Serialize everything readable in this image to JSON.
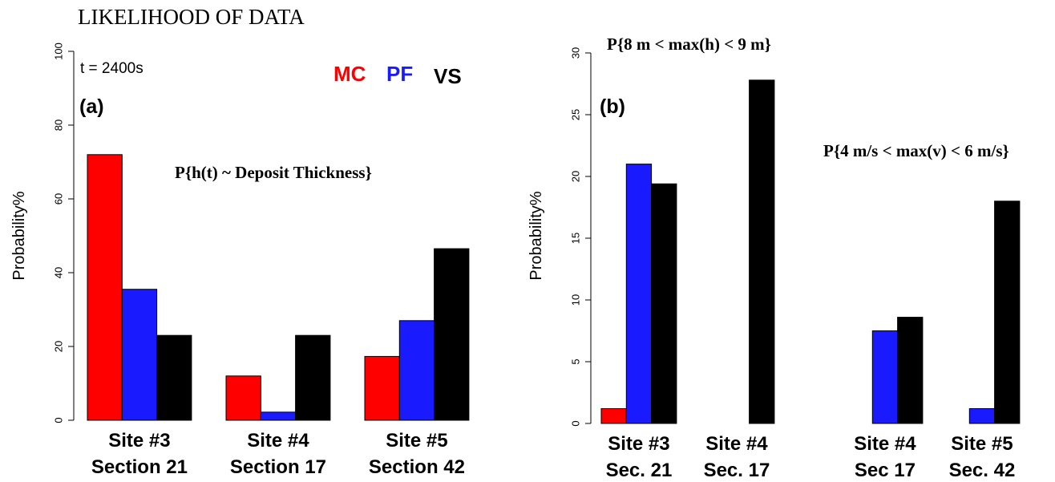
{
  "figure_title": "LIKELIHOOD OF DATA",
  "colors": {
    "MC": "#ff0000",
    "PF": "#1a1aff",
    "VS": "#000000"
  },
  "chart_data": [
    {
      "type": "bar",
      "panel_label": "(a)",
      "time_label": "t = 2400s",
      "annotation": "P{h(t) ~ Deposit Thickness}",
      "legend": [
        "MC",
        "PF",
        "VS"
      ],
      "ylabel": "Probability%",
      "ylim": [
        0,
        100
      ],
      "yticks": [
        0,
        20,
        40,
        60,
        80,
        100
      ],
      "categories": [
        [
          "Site #3",
          "Section 21"
        ],
        [
          "Site #4",
          "Section 17"
        ],
        [
          "Site #5",
          "Section 42"
        ]
      ],
      "series": [
        {
          "name": "MC",
          "values": [
            72,
            12,
            17.3
          ]
        },
        {
          "name": "PF",
          "values": [
            35.5,
            2.2,
            27
          ]
        },
        {
          "name": "VS",
          "values": [
            23,
            23,
            46.5
          ]
        }
      ]
    },
    {
      "type": "bar",
      "panel_label": "(b)",
      "ylabel": "Probability%",
      "ylim": [
        0,
        30
      ],
      "yticks": [
        0,
        5,
        10,
        15,
        20,
        25,
        30
      ],
      "groups": [
        {
          "annotation": "P{8 m < max(h) < 9 m}",
          "categories": [
            [
              "Site #3",
              "Sec. 21"
            ],
            [
              "Site #4",
              "Sec. 17"
            ]
          ],
          "series": [
            {
              "name": "MC",
              "values": [
                1.2,
                0
              ]
            },
            {
              "name": "PF",
              "values": [
                21,
                0
              ]
            },
            {
              "name": "VS",
              "values": [
                19.4,
                27.8
              ]
            }
          ]
        },
        {
          "annotation": "P{4 m/s < max(v) < 6 m/s}",
          "categories": [
            [
              "Site #4",
              "Sec 17"
            ],
            [
              "Site #5",
              "Sec. 42"
            ]
          ],
          "series": [
            {
              "name": "MC",
              "values": [
                0,
                0
              ]
            },
            {
              "name": "PF",
              "values": [
                7.5,
                1.2
              ]
            },
            {
              "name": "VS",
              "values": [
                8.6,
                18
              ]
            }
          ]
        }
      ]
    }
  ]
}
